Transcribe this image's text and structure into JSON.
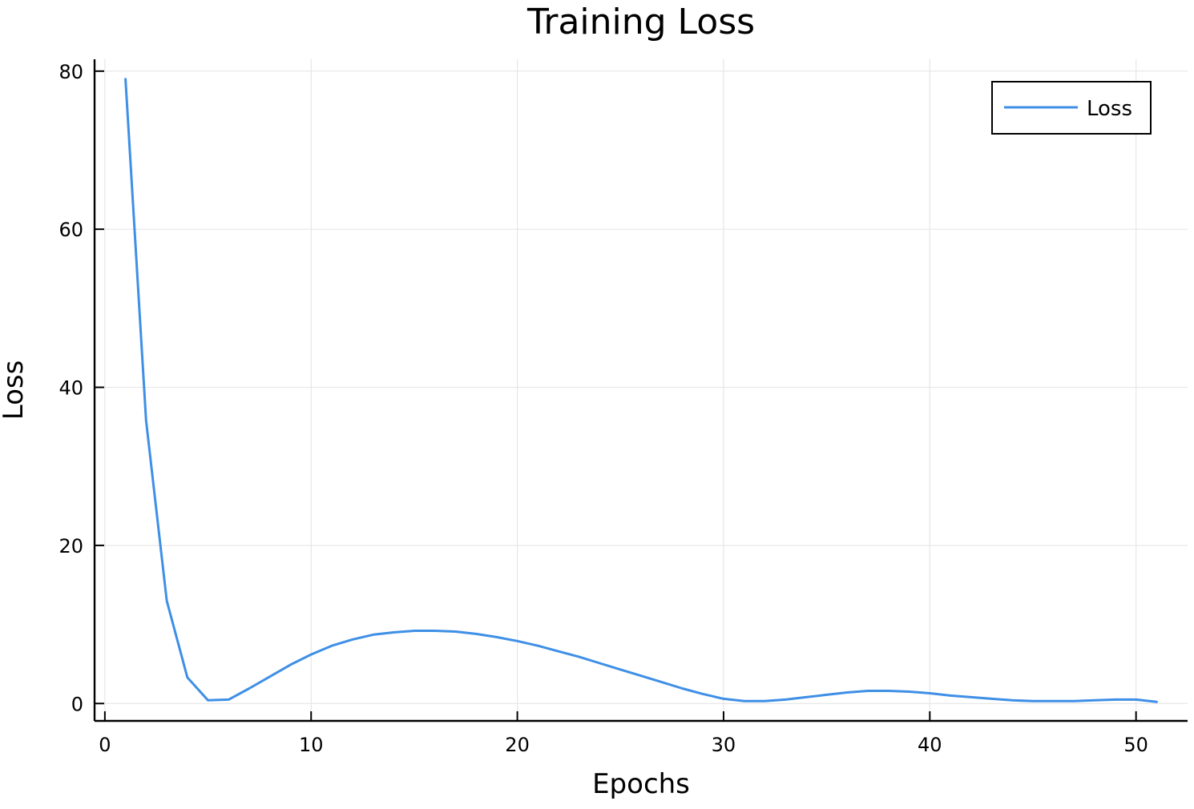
{
  "chart_data": {
    "type": "line",
    "title": "Training Loss",
    "xlabel": "Epochs",
    "ylabel": "Loss",
    "xlim": [
      -0.5,
      52.5
    ],
    "ylim": [
      -2.2,
      81.5
    ],
    "xticks": [
      0,
      10,
      20,
      30,
      40,
      50
    ],
    "yticks": [
      0,
      20,
      40,
      60,
      80
    ],
    "grid": true,
    "legend_position": "top-right",
    "series": [
      {
        "name": "Loss",
        "color": "#3e8fe6",
        "x": [
          1,
          2,
          3,
          4,
          5,
          6,
          7,
          8,
          9,
          10,
          11,
          12,
          13,
          14,
          15,
          16,
          17,
          18,
          19,
          20,
          21,
          22,
          23,
          24,
          25,
          26,
          27,
          28,
          29,
          30,
          31,
          32,
          33,
          34,
          35,
          36,
          37,
          38,
          39,
          40,
          41,
          42,
          43,
          44,
          45,
          46,
          47,
          48,
          49,
          50,
          51
        ],
        "y": [
          79.0,
          35.8,
          13.0,
          3.3,
          0.4,
          0.5,
          1.9,
          3.4,
          4.9,
          6.2,
          7.3,
          8.1,
          8.7,
          9.0,
          9.2,
          9.2,
          9.1,
          8.8,
          8.4,
          7.9,
          7.3,
          6.6,
          5.9,
          5.1,
          4.3,
          3.5,
          2.7,
          1.9,
          1.2,
          0.6,
          0.3,
          0.3,
          0.5,
          0.8,
          1.1,
          1.4,
          1.6,
          1.6,
          1.5,
          1.3,
          1.0,
          0.8,
          0.6,
          0.4,
          0.3,
          0.3,
          0.3,
          0.4,
          0.5,
          0.5,
          0.2
        ]
      }
    ]
  }
}
